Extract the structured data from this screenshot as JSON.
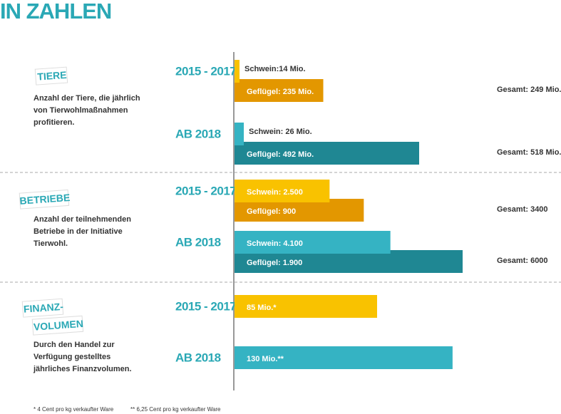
{
  "page_title": "IN ZAHLEN",
  "chart_data": [
    {
      "type": "bar",
      "title": [
        "TIERE"
      ],
      "description": [
        "Anzahl der Tiere, die jährlich",
        "von Tierwohlmaßnahmen",
        "profitieren."
      ],
      "categories": [
        "2015 - 2017",
        "AB 2018"
      ],
      "xlim": [
        0,
        640
      ],
      "series": [
        {
          "name": "Schwein",
          "colors": [
            "#f9c200",
            "#35b3c3"
          ],
          "values": [
            14,
            26
          ],
          "value_labels": [
            "Schwein:14 Mio.",
            "Schwein: 26 Mio."
          ]
        },
        {
          "name": "Geflügel",
          "colors": [
            "#e39700",
            "#1f8793"
          ],
          "values": [
            235,
            492
          ],
          "value_labels": [
            "Geflügel: 235 Mio.",
            "Geflügel: 492 Mio."
          ]
        }
      ],
      "totals": {
        "values": [
          249,
          518
        ],
        "value_labels": [
          "Gesamt: 249 Mio.",
          "Gesamt: 518 Mio."
        ]
      }
    },
    {
      "type": "bar",
      "title": [
        "BETRIEBE"
      ],
      "description": [
        "Anzahl der teilnehmenden",
        "Betriebe in der Initiative",
        "Tierwohl."
      ],
      "categories": [
        "2015 - 2017",
        "AB 2018"
      ],
      "xlim": [
        0,
        6000
      ],
      "series": [
        {
          "name": "Schwein",
          "colors": [
            "#f9c200",
            "#35b3c3"
          ],
          "values": [
            2500,
            4100
          ],
          "value_labels": [
            "Schwein: 2.500",
            "Schwein: 4.100"
          ]
        },
        {
          "name": "Geflügel",
          "colors": [
            "#e39700",
            "#1f8793"
          ],
          "values": [
            900,
            1900
          ],
          "value_labels": [
            "Geflügel: 900",
            "Geflügel: 1.900"
          ]
        }
      ],
      "totals": {
        "values": [
          3400,
          6000
        ],
        "value_labels": [
          "Gesamt: 3400",
          "Gesamt: 6000"
        ]
      }
    },
    {
      "type": "bar",
      "title": [
        "FINANZ-",
        "VOLUMEN"
      ],
      "description": [
        "Durch den Handel zur",
        "Verfügung gestelltes",
        "jährliches Finanzvolumen."
      ],
      "categories": [
        "2015 - 2017",
        "AB 2018"
      ],
      "xlim": [
        0,
        136
      ],
      "series": [
        {
          "colors": [
            "#f9c200",
            "#35b3c3"
          ],
          "values": [
            85,
            130
          ],
          "value_labels": [
            "85 Mio.*",
            "130 Mio.**"
          ]
        }
      ]
    }
  ],
  "footnotes": [
    "* 4 Cent pro kg verkaufter Ware",
    "** 6,25 Cent pro kg verkaufter Ware"
  ]
}
